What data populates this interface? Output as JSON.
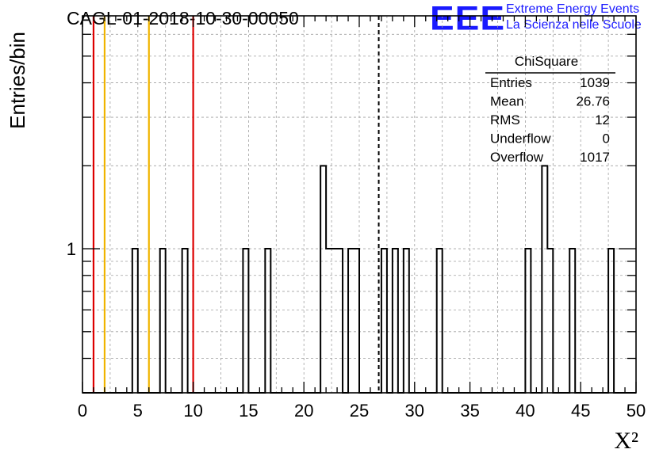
{
  "header": {
    "run_title": "CAGL-01-2018-10-30-00050",
    "logo_text": "EEE",
    "logo_line1": "Extreme Energy Events",
    "logo_line2": "La Scienza nelle Scuole"
  },
  "colors": {
    "histogram": "#000000",
    "red_lines": "#dd0000",
    "orange_lines": "#f0b400",
    "mean_line": "#000000",
    "grid": "#a0a0a0",
    "logo": "#1a1aff"
  },
  "stats_box": {
    "title": "ChiSquare",
    "rows": [
      {
        "label": "Entries",
        "value": "1039"
      },
      {
        "label": "Mean",
        "value": "26.76"
      },
      {
        "label": "RMS",
        "value": "12"
      },
      {
        "label": "Underflow",
        "value": "0"
      },
      {
        "label": "Overflow",
        "value": "1017"
      }
    ]
  },
  "chart_data": {
    "type": "bar",
    "title": "CAGL-01-2018-10-30-00050",
    "xlabel": "X²",
    "ylabel": "Entries/bin",
    "xlim": [
      0,
      50
    ],
    "ylim": [
      0.3,
      7
    ],
    "log_y": true,
    "grid": true,
    "bin_width": 0.5,
    "x_ticks": [
      0,
      5,
      10,
      15,
      20,
      25,
      30,
      35,
      40,
      45,
      50
    ],
    "y_ticks": [
      1
    ],
    "bins": [
      {
        "x": 4.5,
        "count": 1
      },
      {
        "x": 7.0,
        "count": 1
      },
      {
        "x": 9.0,
        "count": 1
      },
      {
        "x": 14.5,
        "count": 1
      },
      {
        "x": 16.5,
        "count": 1
      },
      {
        "x": 21.5,
        "count": 2
      },
      {
        "x": 22.0,
        "count": 1
      },
      {
        "x": 22.5,
        "count": 1
      },
      {
        "x": 23.0,
        "count": 1
      },
      {
        "x": 24.0,
        "count": 1
      },
      {
        "x": 24.5,
        "count": 1
      },
      {
        "x": 27.0,
        "count": 1
      },
      {
        "x": 28.0,
        "count": 1
      },
      {
        "x": 29.0,
        "count": 1
      },
      {
        "x": 32.0,
        "count": 1
      },
      {
        "x": 40.0,
        "count": 1
      },
      {
        "x": 41.5,
        "count": 2
      },
      {
        "x": 42.0,
        "count": 1
      },
      {
        "x": 44.0,
        "count": 1
      },
      {
        "x": 47.5,
        "count": 1
      }
    ],
    "vertical_lines": [
      {
        "x": 1,
        "color": "red"
      },
      {
        "x": 10,
        "color": "red"
      },
      {
        "x": 2,
        "color": "orange"
      },
      {
        "x": 6,
        "color": "orange"
      },
      {
        "x": 26.76,
        "color": "black-dashed",
        "label": "mean"
      }
    ]
  }
}
